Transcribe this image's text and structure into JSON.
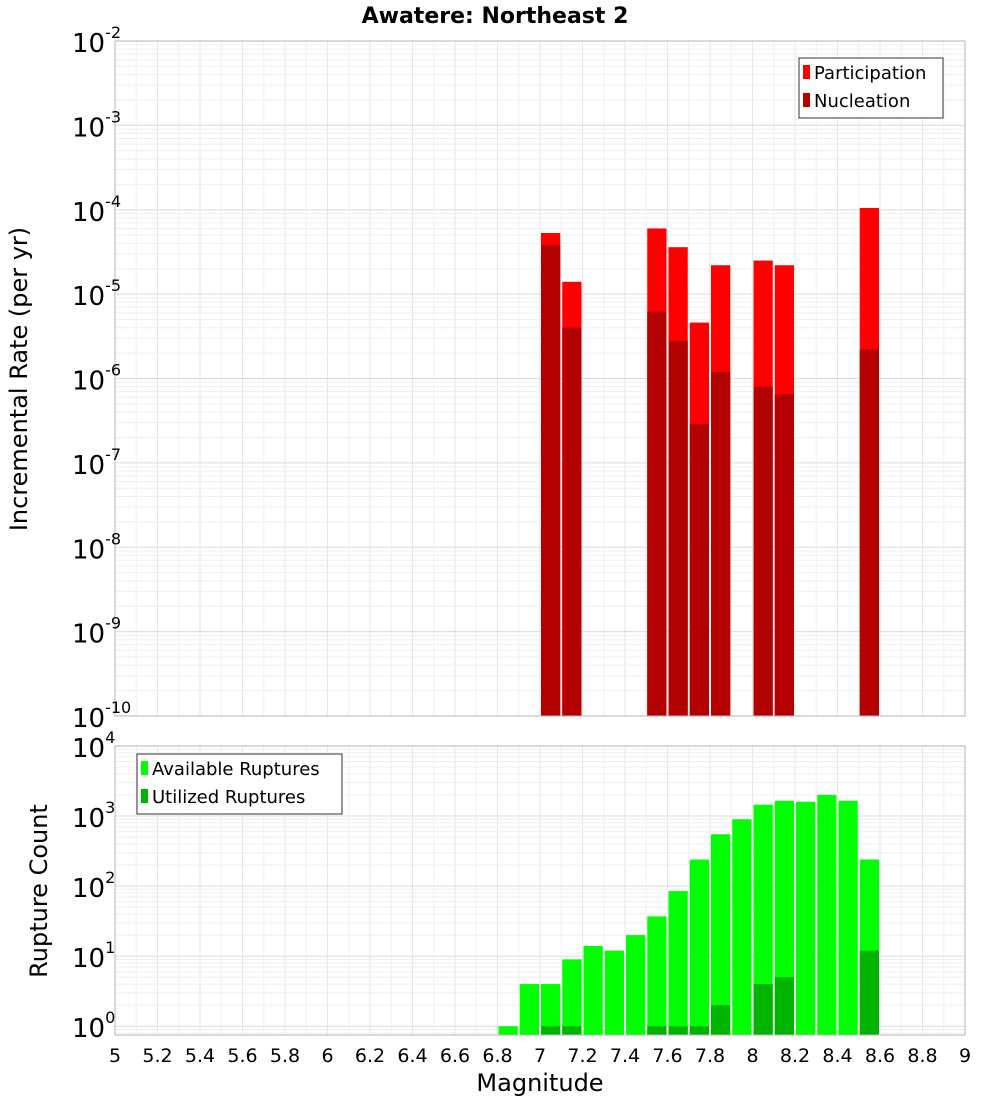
{
  "chart_data": [
    {
      "type": "bar",
      "title": "Awatere: Northeast 2",
      "ylabel": "Incremental Rate (per yr)",
      "xlabel": "",
      "xlim": [
        5,
        9
      ],
      "ylim": [
        1e-10,
        0.01
      ],
      "y_scale": "log",
      "grid": true,
      "legend_position": "top-right",
      "bar_width": 0.1,
      "y_ticks": [
        {
          "base": "10",
          "exp": "-10"
        },
        {
          "base": "10",
          "exp": "-9"
        },
        {
          "base": "10",
          "exp": "-8"
        },
        {
          "base": "10",
          "exp": "-7"
        },
        {
          "base": "10",
          "exp": "-6"
        },
        {
          "base": "10",
          "exp": "-5"
        },
        {
          "base": "10",
          "exp": "-4"
        },
        {
          "base": "10",
          "exp": "-3"
        },
        {
          "base": "10",
          "exp": "-2"
        }
      ],
      "series": [
        {
          "name": "Participation",
          "color": "#ff0000",
          "x": [
            7.05,
            7.15,
            7.55,
            7.65,
            7.75,
            7.85,
            8.05,
            8.15,
            8.55
          ],
          "values": [
            5.3e-05,
            1.4e-05,
            6e-05,
            3.6e-05,
            4.6e-06,
            2.2e-05,
            2.5e-05,
            2.2e-05,
            0.000105
          ]
        },
        {
          "name": "Nucleation",
          "color": "#b30000",
          "x": [
            7.05,
            7.15,
            7.55,
            7.65,
            7.75,
            7.85,
            8.05,
            8.15,
            8.55
          ],
          "values": [
            3.8e-05,
            4e-06,
            6.2e-06,
            2.8e-06,
            2.9e-07,
            1.2e-06,
            8e-07,
            6.5e-07,
            2.2e-06
          ]
        }
      ]
    },
    {
      "type": "bar",
      "xlabel": "Magnitude",
      "ylabel": "Rupture Count",
      "xlim": [
        5,
        9
      ],
      "ylim": [
        0.75,
        10000
      ],
      "y_scale": "log",
      "grid": true,
      "legend_position": "top-left",
      "bar_width": 0.1,
      "x_ticks": [
        "5",
        "5.2",
        "5.4",
        "5.6",
        "5.8",
        "6",
        "6.2",
        "6.4",
        "6.6",
        "6.8",
        "7",
        "7.2",
        "7.4",
        "7.6",
        "7.8",
        "8",
        "8.2",
        "8.4",
        "8.6",
        "8.8",
        "9"
      ],
      "y_ticks": [
        {
          "base": "10",
          "exp": "0"
        },
        {
          "base": "10",
          "exp": "1"
        },
        {
          "base": "10",
          "exp": "2"
        },
        {
          "base": "10",
          "exp": "3"
        },
        {
          "base": "10",
          "exp": "4"
        }
      ],
      "series": [
        {
          "name": "Available Ruptures",
          "color": "#00ff00",
          "x": [
            6.85,
            6.95,
            7.05,
            7.15,
            7.25,
            7.35,
            7.45,
            7.55,
            7.65,
            7.75,
            7.85,
            7.95,
            8.05,
            8.15,
            8.25,
            8.35,
            8.45,
            8.55
          ],
          "values": [
            1,
            4,
            4,
            9,
            14,
            12,
            20,
            37,
            85,
            240,
            550,
            900,
            1450,
            1650,
            1600,
            2000,
            1650,
            240
          ]
        },
        {
          "name": "Utilized Ruptures",
          "color": "#00b300",
          "x": [
            7.05,
            7.15,
            7.55,
            7.65,
            7.75,
            7.85,
            8.05,
            8.15,
            8.55
          ],
          "values": [
            1,
            1,
            1,
            1,
            1,
            2,
            4,
            5,
            12
          ]
        }
      ]
    }
  ]
}
